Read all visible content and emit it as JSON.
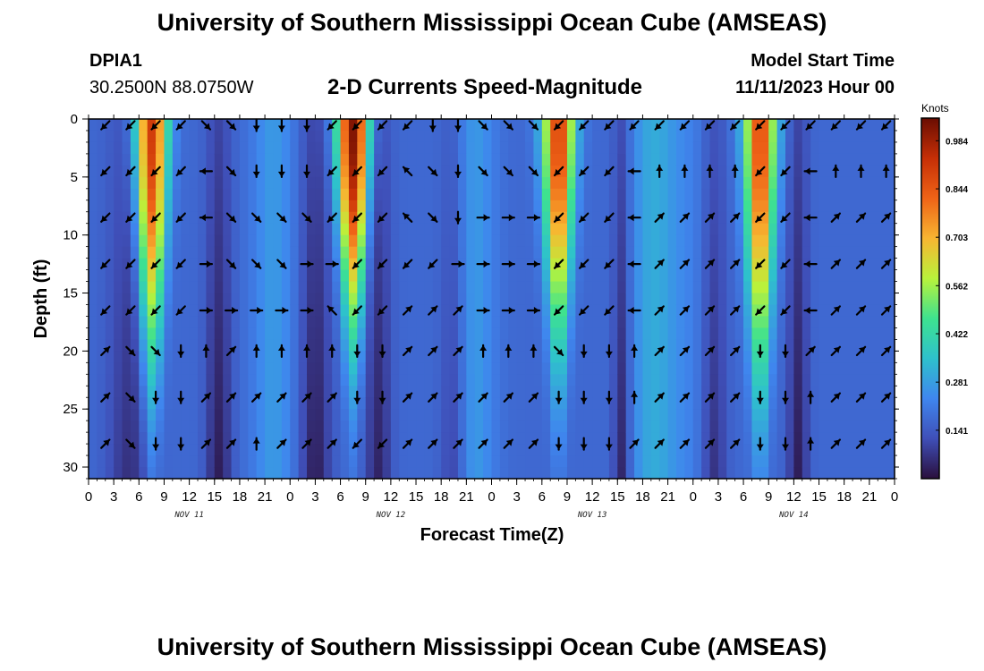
{
  "header": {
    "title": "University of Southern Mississippi Ocean Cube (AMSEAS)",
    "station": "DPIA1",
    "coordinates": "30.2500N  88.0750W",
    "subtitle": "2-D Currents Speed-Magnitude",
    "model_start_label": "Model Start Time",
    "model_start_value": "11/11/2023 Hour 00"
  },
  "footer": {
    "title": "University of Southern Mississippi Ocean Cube (AMSEAS)"
  },
  "chart_data": {
    "type": "heatmap",
    "title": "2-D Currents Speed-Magnitude",
    "xlabel": "Forecast Time(Z)",
    "ylabel": "Depth (ft)",
    "x_range_hours": [
      0,
      96
    ],
    "x_tick_hours": [
      0,
      3,
      6,
      9,
      12,
      15,
      18,
      21,
      24,
      27,
      30,
      33,
      36,
      39,
      42,
      45,
      48,
      51,
      54,
      57,
      60,
      63,
      66,
      69,
      72,
      75,
      78,
      81,
      84,
      87,
      90,
      93,
      96
    ],
    "x_tick_labels": [
      "0",
      "3",
      "6",
      "9",
      "12",
      "15",
      "18",
      "21",
      "0",
      "3",
      "6",
      "9",
      "12",
      "15",
      "18",
      "21",
      "0",
      "3",
      "6",
      "9",
      "12",
      "15",
      "18",
      "21",
      "0",
      "3",
      "6",
      "9",
      "12",
      "15",
      "18",
      "21",
      "0"
    ],
    "day_labels": [
      {
        "hour": 12,
        "text": "NOV 11"
      },
      {
        "hour": 36,
        "text": "NOV 12"
      },
      {
        "hour": 60,
        "text": "NOV 13"
      },
      {
        "hour": 84,
        "text": "NOV 14"
      }
    ],
    "y_range_ft": [
      0,
      31
    ],
    "y_ticks": [
      0,
      5,
      10,
      15,
      20,
      25,
      30
    ],
    "y_tick_labels": [
      "0",
      "5",
      "10",
      "15",
      "20",
      "25",
      "30"
    ],
    "colorbar": {
      "unit": "Knots",
      "range": [
        0,
        1.05
      ],
      "tick_values": [
        0.141,
        0.281,
        0.422,
        0.562,
        0.703,
        0.844,
        0.984
      ],
      "tick_labels": [
        "0.141",
        "0.281",
        "0.422",
        "0.562",
        "0.703",
        "0.844",
        "0.984"
      ],
      "colors": [
        "#2a0f3c",
        "#3f4fb8",
        "#3f86ee",
        "#2ec1cc",
        "#3ee28f",
        "#b9f23b",
        "#f8b531",
        "#ef6317",
        "#c62f06",
        "#6a0d02"
      ]
    },
    "surges": [
      {
        "center_hour": 7.5,
        "peak_knots": 0.9,
        "depth_reach_ft": 26
      },
      {
        "center_hour": 31.5,
        "peak_knots": 1.0,
        "depth_reach_ft": 22
      },
      {
        "center_hour": 56.0,
        "peak_knots": 0.88,
        "depth_reach_ft": 24
      },
      {
        "center_hour": 80.0,
        "peak_knots": 0.86,
        "depth_reach_ft": 28
      }
    ],
    "vector_depths_ft": [
      0,
      4.5,
      8.5,
      12.5,
      16.5,
      20,
      24,
      28
    ],
    "vector_hours": [
      2,
      5,
      8,
      11,
      14,
      17,
      20,
      23,
      26,
      29,
      32,
      35,
      38,
      41,
      44,
      47,
      50,
      53,
      56,
      59,
      62,
      65,
      68,
      71,
      74,
      77,
      80,
      83,
      86,
      89,
      92,
      95
    ],
    "vector_directions_deg": {
      "0": [
        225,
        225,
        225,
        225,
        135,
        135,
        180,
        180,
        180,
        225,
        225,
        225,
        225,
        180,
        180,
        135,
        135,
        135,
        225,
        225,
        225,
        225,
        225,
        225,
        225,
        225,
        225,
        225,
        225,
        225,
        225,
        225
      ],
      "4.5": [
        225,
        225,
        225,
        225,
        270,
        135,
        180,
        180,
        180,
        225,
        225,
        225,
        315,
        135,
        180,
        135,
        135,
        135,
        225,
        225,
        225,
        270,
        0,
        0,
        0,
        0,
        225,
        225,
        270,
        0,
        0,
        0
      ],
      "8.5": [
        225,
        225,
        225,
        225,
        270,
        135,
        135,
        135,
        135,
        225,
        225,
        225,
        315,
        135,
        180,
        90,
        90,
        90,
        225,
        225,
        225,
        270,
        45,
        45,
        45,
        45,
        225,
        225,
        270,
        45,
        45,
        45
      ],
      "12.5": [
        225,
        225,
        225,
        225,
        90,
        135,
        135,
        135,
        90,
        90,
        225,
        225,
        225,
        225,
        90,
        90,
        90,
        90,
        225,
        225,
        225,
        270,
        45,
        45,
        45,
        45,
        225,
        225,
        270,
        45,
        45,
        45
      ],
      "16.5": [
        225,
        225,
        225,
        225,
        90,
        90,
        90,
        90,
        90,
        315,
        225,
        225,
        45,
        45,
        45,
        90,
        90,
        90,
        225,
        225,
        225,
        270,
        45,
        45,
        45,
        45,
        225,
        225,
        270,
        45,
        45,
        45
      ],
      "20": [
        45,
        135,
        135,
        180,
        0,
        45,
        0,
        0,
        0,
        0,
        180,
        180,
        45,
        45,
        45,
        0,
        0,
        0,
        135,
        180,
        180,
        0,
        45,
        45,
        45,
        45,
        180,
        180,
        45,
        45,
        45,
        45
      ],
      "24": [
        45,
        135,
        180,
        180,
        45,
        45,
        45,
        45,
        45,
        45,
        180,
        180,
        45,
        45,
        45,
        45,
        45,
        45,
        180,
        180,
        180,
        0,
        45,
        45,
        45,
        45,
        180,
        180,
        0,
        45,
        45,
        45
      ],
      "28": [
        45,
        135,
        180,
        180,
        45,
        45,
        0,
        45,
        45,
        45,
        225,
        225,
        45,
        45,
        45,
        45,
        45,
        45,
        180,
        180,
        180,
        45,
        45,
        45,
        45,
        45,
        180,
        180,
        0,
        45,
        45,
        45
      ]
    }
  }
}
